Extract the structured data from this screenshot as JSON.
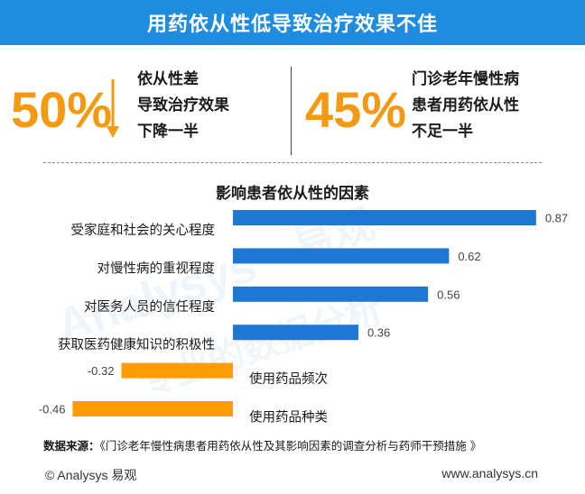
{
  "header": {
    "title": "用药依从性低导致治疗效果不佳"
  },
  "stats": [
    {
      "value": "50%",
      "lines": [
        "依从性差",
        "导致治疗效果",
        "下降一半"
      ],
      "arrow": "down-arrow"
    },
    {
      "value": "45%",
      "lines": [
        "门诊老年慢性病",
        "患者用药依从性",
        "不足一半"
      ]
    }
  ],
  "chart_data": {
    "type": "bar",
    "orientation": "horizontal",
    "title": "影响患者依从性的因素",
    "categories": [
      "受家庭和社会的关心程度",
      "对慢性病的重视程度",
      "对医务人员的信任程度",
      "获取医药健康知识的积极性",
      "使用药品频次",
      "使用药品种类"
    ],
    "values": [
      0.87,
      0.62,
      0.56,
      0.36,
      -0.32,
      -0.46
    ],
    "value_labels": [
      "0.87",
      "0.62",
      "0.56",
      "0.36",
      "-0.32",
      "-0.46"
    ],
    "xlim": [
      -0.46,
      0.87
    ],
    "grid": false,
    "colors": {
      "positive": "#1f77d4",
      "negative": "#ff9c00"
    }
  },
  "source": {
    "label": "数据来源：",
    "text": "《门诊老年慢性病患者用药依从性及其影响因素的调查分析与药师干预措施 》"
  },
  "footer": {
    "brand": "© Analysys 易观",
    "url": "www.analysys.cn"
  },
  "colors": {
    "header": "#1f8ce0",
    "accent": "#f39a12"
  }
}
